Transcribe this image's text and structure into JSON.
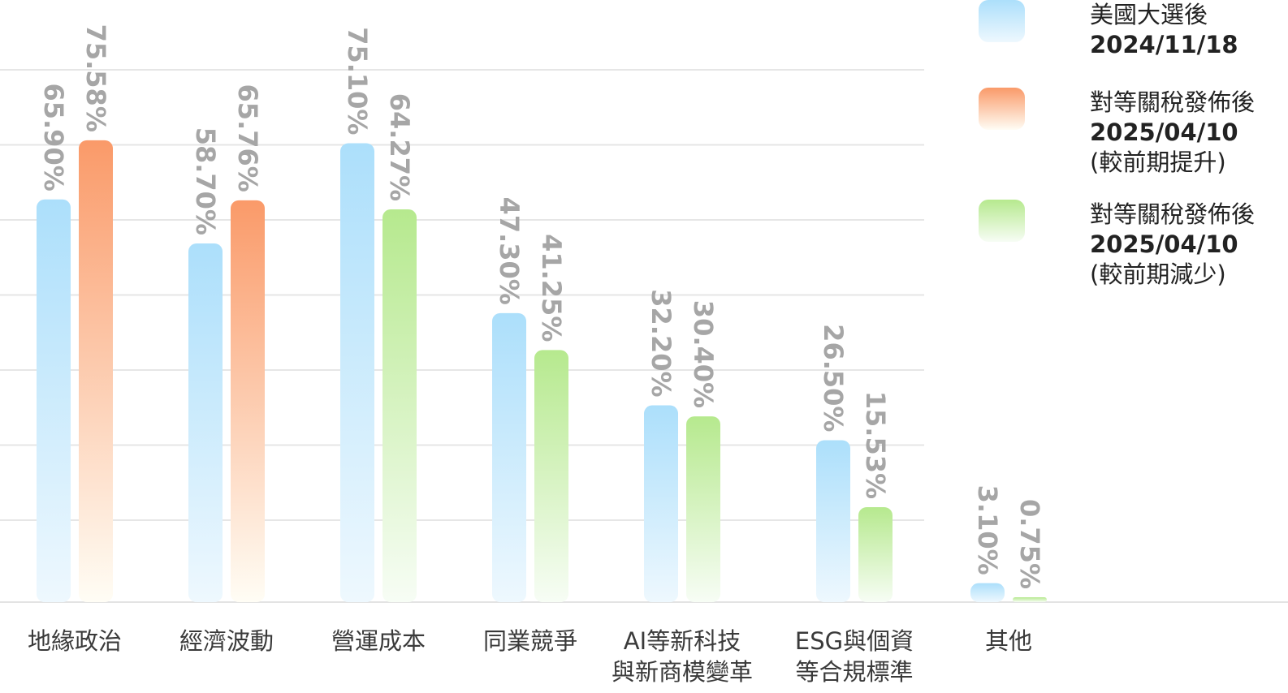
{
  "chart_data": {
    "type": "bar",
    "categories": [
      [
        "地緣政治"
      ],
      [
        "經濟波動"
      ],
      [
        "營運成本"
      ],
      [
        "同業競爭"
      ],
      [
        "AI等新科技",
        "與新商模變革"
      ],
      [
        "ESG與個資",
        "等合規標準"
      ],
      [
        "其他"
      ]
    ],
    "series": [
      {
        "values": [
          65.9,
          58.7,
          75.1,
          47.3,
          32.2,
          26.5,
          3.1
        ],
        "labels": [
          "65.90%",
          "58.70%",
          "75.10%",
          "47.30%",
          "32.20%",
          "26.50%",
          "3.10%"
        ]
      },
      {
        "values": [
          75.58,
          65.76,
          64.27,
          41.25,
          30.4,
          15.53,
          0.75
        ],
        "labels": [
          "75.58%",
          "65.76%",
          "64.27%",
          "41.25%",
          "30.40%",
          "15.53%",
          "0.75%"
        ],
        "point_colors": [
          "orange",
          "orange",
          "green",
          "green",
          "green",
          "green",
          "green"
        ]
      }
    ],
    "ylim": [
      0,
      80
    ],
    "grid": true,
    "legend": {
      "placement": "top-right",
      "items": [
        {
          "color": "blue",
          "lines": [
            "美國大選後",
            "2024/11/18"
          ]
        },
        {
          "color": "orange",
          "lines": [
            "對等關稅發佈後",
            "2025/04/10",
            "(較前期提升)"
          ]
        },
        {
          "color": "green",
          "lines": [
            "對等關稅發佈後",
            "2025/04/10",
            "(較前期減少)"
          ]
        }
      ]
    }
  },
  "colors": {
    "blue": {
      "top": "#acdffb",
      "bottom": "#eef8fe"
    },
    "orange": {
      "top": "#fa9a69",
      "bottom": "#fffdf5"
    },
    "green": {
      "top": "#b6e98e",
      "bottom": "#f7fdf5"
    },
    "grid": "#e6e6e6",
    "value_label": "#a6a6a6",
    "category_label": "#3a3a3a",
    "legend_text": "#222222"
  }
}
